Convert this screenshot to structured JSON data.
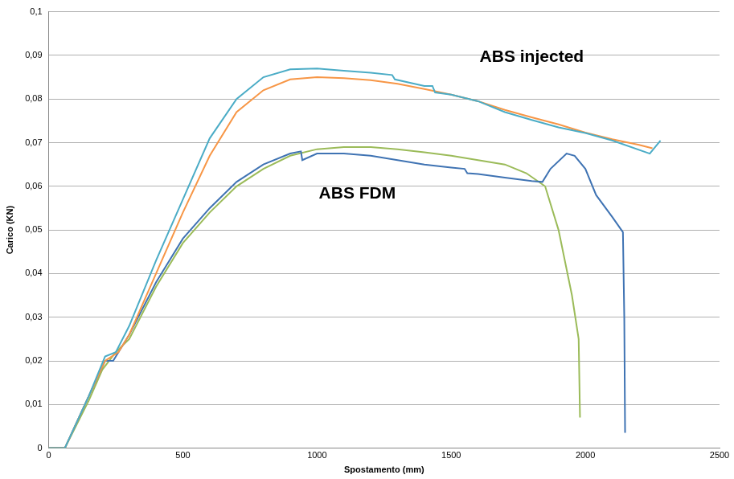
{
  "chart_data": {
    "type": "line",
    "x_label": "Spostamento (mm)",
    "y_label": "Carico (KN)",
    "xlim": [
      0,
      2500
    ],
    "xticks": [
      0,
      500,
      1000,
      1500,
      2000,
      2500
    ],
    "ylim": [
      0,
      0.1
    ],
    "yticks": [
      0,
      {
        "value": 0.01,
        "label": "0,01"
      },
      {
        "value": 0.02,
        "label": "0,02"
      },
      {
        "value": 0.03,
        "label": "0,03"
      },
      {
        "value": 0.04,
        "label": "0,04"
      },
      {
        "value": 0.05,
        "label": "0,05"
      },
      {
        "value": 0.06,
        "label": "0,06"
      },
      {
        "value": 0.07,
        "label": "0,07"
      },
      {
        "value": 0.08,
        "label": "0,08"
      },
      {
        "value": 0.09,
        "label": "0,09"
      },
      {
        "value": 0.1,
        "label": "0,1"
      }
    ],
    "grid": "y",
    "annotations": [
      {
        "text": "ABS injected",
        "x": 1800,
        "y": 0.0895
      },
      {
        "text": "ABS FDM",
        "x": 1150,
        "y": 0.0583
      }
    ],
    "series": [
      {
        "color": "#4bacc6",
        "x": [
          0,
          60,
          150,
          210,
          250,
          300,
          400,
          500,
          600,
          700,
          800,
          900,
          1000,
          1100,
          1200,
          1280,
          1290,
          1400,
          1430,
          1440,
          1500,
          1600,
          1700,
          1800,
          1900,
          2000,
          2100,
          2240,
          2280
        ],
        "values": [
          0,
          0,
          0.012,
          0.021,
          0.022,
          0.028,
          0.043,
          0.057,
          0.071,
          0.08,
          0.085,
          0.0868,
          0.087,
          0.0865,
          0.086,
          0.0855,
          0.0845,
          0.083,
          0.083,
          0.0815,
          0.081,
          0.0795,
          0.077,
          0.0752,
          0.0735,
          0.0722,
          0.0705,
          0.0675,
          0.0705
        ]
      },
      {
        "color": "#f79646",
        "x": [
          0,
          60,
          150,
          210,
          260,
          300,
          400,
          500,
          600,
          700,
          800,
          900,
          1000,
          1100,
          1200,
          1300,
          1400,
          1500,
          1600,
          1700,
          1800,
          1900,
          2000,
          2100,
          2200,
          2250
        ],
        "values": [
          0,
          0,
          0.012,
          0.02,
          0.022,
          0.026,
          0.04,
          0.054,
          0.067,
          0.077,
          0.082,
          0.0845,
          0.085,
          0.0848,
          0.0843,
          0.0835,
          0.0823,
          0.081,
          0.0795,
          0.0775,
          0.0758,
          0.0742,
          0.0723,
          0.0708,
          0.0695,
          0.0687
        ]
      },
      {
        "color": "#3f73b3",
        "x": [
          0,
          60,
          150,
          210,
          240,
          270,
          300,
          400,
          500,
          600,
          700,
          800,
          900,
          940,
          945,
          1000,
          1100,
          1200,
          1300,
          1400,
          1500,
          1550,
          1560,
          1600,
          1700,
          1800,
          1840,
          1870,
          1930,
          1960,
          2000,
          2040,
          2100,
          2140,
          2145,
          2148
        ],
        "values": [
          0,
          0,
          0.012,
          0.02,
          0.02,
          0.023,
          0.026,
          0.038,
          0.048,
          0.055,
          0.061,
          0.065,
          0.0675,
          0.068,
          0.066,
          0.0675,
          0.0675,
          0.067,
          0.066,
          0.065,
          0.0643,
          0.064,
          0.063,
          0.0628,
          0.062,
          0.0612,
          0.061,
          0.064,
          0.0675,
          0.067,
          0.064,
          0.058,
          0.053,
          0.0495,
          0.03,
          0.0035
        ]
      },
      {
        "color": "#9bbb59",
        "x": [
          0,
          60,
          150,
          200,
          250,
          300,
          400,
          500,
          600,
          700,
          800,
          900,
          1000,
          1100,
          1200,
          1300,
          1400,
          1500,
          1600,
          1700,
          1780,
          1850,
          1900,
          1950,
          1975,
          1980
        ],
        "values": [
          0,
          0,
          0.011,
          0.018,
          0.022,
          0.025,
          0.037,
          0.047,
          0.054,
          0.06,
          0.064,
          0.067,
          0.0685,
          0.069,
          0.069,
          0.0685,
          0.0678,
          0.067,
          0.066,
          0.065,
          0.063,
          0.06,
          0.05,
          0.035,
          0.025,
          0.007
        ]
      }
    ]
  }
}
